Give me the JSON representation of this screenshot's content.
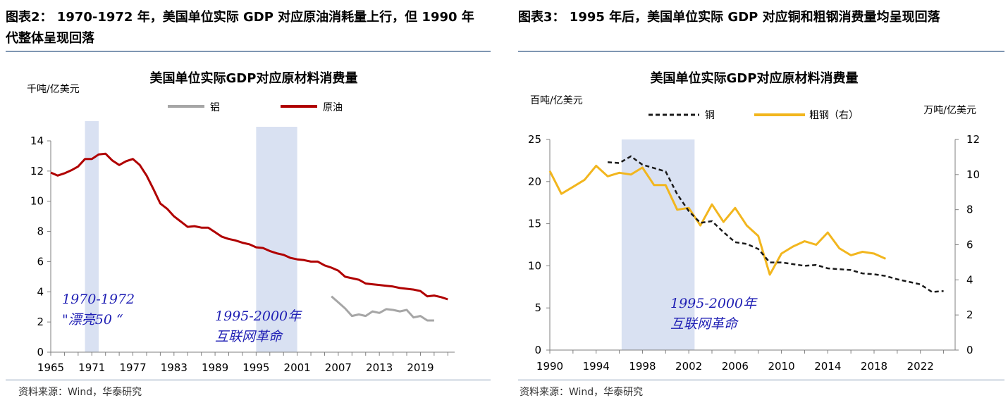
{
  "left": {
    "figure_title": "图表2： 1970-1972 年，美国单位实际 GDP 对应原油消耗量上行，但 1990 年代整体呈现回落",
    "source": "资料来源：Wind，华泰研究"
  },
  "right": {
    "figure_title": "图表3： 1995 年后，美国单位实际 GDP 对应铜和粗钢消费量均呈现回落",
    "source": "资料来源：Wind，华泰研究"
  },
  "chart_data": [
    {
      "type": "line",
      "title": "美国单位实际GDP对应原材料消费量",
      "ylabel": "千吨/亿美元",
      "ylim": [
        0,
        14
      ],
      "yticks": [
        "0",
        "2",
        "4",
        "6",
        "8",
        "10",
        "12",
        "14"
      ],
      "xlim": [
        1965,
        2024
      ],
      "xticks": [
        "1965",
        "1971",
        "1977",
        "1983",
        "1989",
        "1995",
        "2001",
        "2007",
        "2013",
        "2019"
      ],
      "legend_position": "top",
      "shaded_periods": [
        [
          1970,
          1972
        ],
        [
          1995,
          2001
        ]
      ],
      "annotations": [
        {
          "lines": [
            "1970-1972",
            "\"漂亮50 “"
          ]
        },
        {
          "lines": [
            "1995-2000年",
            "互联网革命"
          ]
        }
      ],
      "series": [
        {
          "name": "铝",
          "color": "#a6a6a6",
          "x": [
            2006,
            2007,
            2008,
            2009,
            2010,
            2011,
            2012,
            2013,
            2014,
            2015,
            2016,
            2017,
            2018,
            2019,
            2020,
            2021
          ],
          "values": [
            3.7,
            3.3,
            2.9,
            2.4,
            2.5,
            2.4,
            2.7,
            2.6,
            2.85,
            2.8,
            2.7,
            2.8,
            2.3,
            2.4,
            2.1,
            2.1
          ]
        },
        {
          "name": "原油",
          "color": "#b00000",
          "x": [
            1965,
            1966,
            1967,
            1968,
            1969,
            1970,
            1971,
            1972,
            1973,
            1974,
            1975,
            1976,
            1977,
            1978,
            1979,
            1980,
            1981,
            1982,
            1983,
            1984,
            1985,
            1986,
            1987,
            1988,
            1989,
            1990,
            1991,
            1992,
            1993,
            1994,
            1995,
            1996,
            1997,
            1998,
            1999,
            2000,
            2001,
            2002,
            2003,
            2004,
            2005,
            2006,
            2007,
            2008,
            2009,
            2010,
            2011,
            2012,
            2013,
            2014,
            2015,
            2016,
            2017,
            2018,
            2019,
            2020,
            2021,
            2022,
            2023
          ],
          "values": [
            11.9,
            11.7,
            11.85,
            12.05,
            12.3,
            12.8,
            12.8,
            13.1,
            13.15,
            12.7,
            12.4,
            12.65,
            12.8,
            12.4,
            11.7,
            10.8,
            9.85,
            9.5,
            9.0,
            8.65,
            8.3,
            8.35,
            8.25,
            8.25,
            7.95,
            7.65,
            7.5,
            7.4,
            7.25,
            7.15,
            6.95,
            6.9,
            6.7,
            6.55,
            6.45,
            6.25,
            6.15,
            6.1,
            6.0,
            6.0,
            5.75,
            5.6,
            5.4,
            5.0,
            4.9,
            4.8,
            4.55,
            4.5,
            4.45,
            4.4,
            4.35,
            4.25,
            4.2,
            4.15,
            4.05,
            3.7,
            3.75,
            3.65,
            3.5
          ]
        }
      ]
    },
    {
      "type": "line",
      "title": "美国单位实际GDP对应原材料消费量",
      "ylabel": "百吨/亿美元",
      "ylabel_right": "万吨/亿美元",
      "ylim": [
        0,
        25
      ],
      "yticks": [
        "0",
        "5",
        "10",
        "15",
        "20",
        "25"
      ],
      "ylim_right": [
        0,
        12
      ],
      "yticks_right": [
        "0",
        "2",
        "4",
        "6",
        "8",
        "10",
        "12"
      ],
      "xlim": [
        1990,
        2025
      ],
      "xticks": [
        "1990",
        "1994",
        "1998",
        "2002",
        "2006",
        "2010",
        "2014",
        "2018",
        "2022"
      ],
      "legend_position": "top",
      "shaded_periods": [
        [
          1996.2,
          2002.5
        ]
      ],
      "annotations": [
        {
          "lines": [
            "1995-2000年",
            "互联网革命"
          ]
        }
      ],
      "series": [
        {
          "name": "铜",
          "color": "#1a1a1a",
          "dash": true,
          "axis": "left",
          "x": [
            1995,
            1996,
            1997,
            1998,
            1999,
            2000,
            2001,
            2002,
            2003,
            2004,
            2005,
            2006,
            2007,
            2008,
            2009,
            2010,
            2011,
            2012,
            2013,
            2014,
            2015,
            2016,
            2017,
            2018,
            2019,
            2020,
            2021,
            2022,
            2023,
            2024
          ],
          "values": [
            22.3,
            22.2,
            23.0,
            22.0,
            21.6,
            21.2,
            18.5,
            16.5,
            15.1,
            15.3,
            14.0,
            12.8,
            12.6,
            12.0,
            10.4,
            10.4,
            10.2,
            10.0,
            10.1,
            9.7,
            9.6,
            9.5,
            9.1,
            9.0,
            8.8,
            8.4,
            8.1,
            7.8,
            6.9,
            7.0
          ]
        },
        {
          "name": "粗钢（右）",
          "color": "#f2b61e",
          "axis": "right",
          "x": [
            1990,
            1991,
            1992,
            1993,
            1994,
            1995,
            1996,
            1997,
            1998,
            1999,
            2000,
            2001,
            2002,
            2003,
            2004,
            2005,
            2006,
            2007,
            2008,
            2009,
            2010,
            2011,
            2012,
            2013,
            2014,
            2015,
            2016,
            2017,
            2018,
            2019
          ],
          "values": [
            10.2,
            8.9,
            9.3,
            9.7,
            10.5,
            9.9,
            10.1,
            10.0,
            10.4,
            9.4,
            9.4,
            8.0,
            8.1,
            7.1,
            8.3,
            7.3,
            8.1,
            7.1,
            6.5,
            4.3,
            5.5,
            5.9,
            6.2,
            6.0,
            6.7,
            5.8,
            5.4,
            5.6,
            5.5,
            5.2
          ]
        }
      ]
    }
  ]
}
